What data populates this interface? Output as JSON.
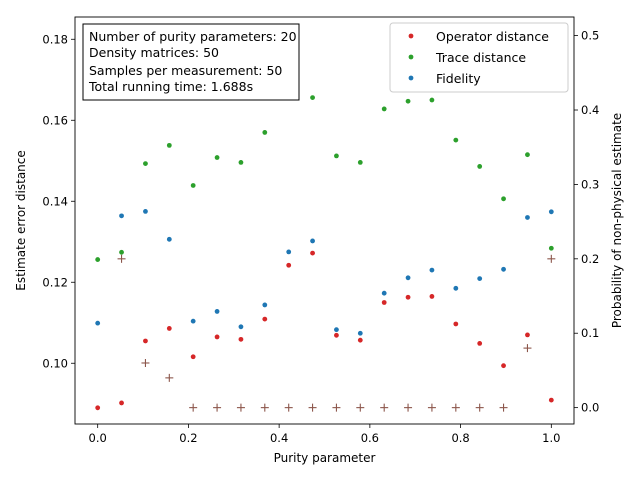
{
  "chart_data": {
    "type": "scatter",
    "xlabel": "Purity parameter",
    "ylabel": "Estimate error distance",
    "y2label": "Probability of non-physical estimate",
    "xlim": [
      -0.05,
      1.05
    ],
    "ylim": [
      0.085,
      0.1855
    ],
    "y2lim": [
      -0.022,
      0.525
    ],
    "x_ticks": [
      0.0,
      0.2,
      0.4,
      0.6,
      0.8,
      1.0
    ],
    "x_tick_labels": [
      "0.0",
      "0.2",
      "0.4",
      "0.6",
      "0.8",
      "1.0"
    ],
    "y_ticks": [
      0.1,
      0.12,
      0.14,
      0.16,
      0.18
    ],
    "y_tick_labels": [
      "0.10",
      "0.12",
      "0.14",
      "0.16",
      "0.18"
    ],
    "y2_ticks": [
      0.0,
      0.1,
      0.2,
      0.3,
      0.4,
      0.5
    ],
    "y2_tick_labels": [
      "0.0",
      "0.1",
      "0.2",
      "0.3",
      "0.4",
      "0.5"
    ],
    "x": [
      0.0,
      0.0526,
      0.1053,
      0.1579,
      0.2105,
      0.2632,
      0.3158,
      0.3684,
      0.4211,
      0.4737,
      0.5263,
      0.5789,
      0.6316,
      0.6842,
      0.7368,
      0.7895,
      0.8421,
      0.8947,
      0.9474,
      1.0
    ],
    "series": [
      {
        "name": "Operator distance",
        "axis": "left",
        "color": "#d62728",
        "marker": "dot",
        "values": [
          0.089,
          0.0902,
          0.1055,
          0.1086,
          0.1016,
          0.1065,
          0.1059,
          0.1109,
          0.1242,
          0.1272,
          0.1069,
          0.1057,
          0.115,
          0.1163,
          0.1165,
          0.1097,
          0.1049,
          0.0994,
          0.107,
          0.0909
        ]
      },
      {
        "name": "Trace distance",
        "axis": "left",
        "color": "#2ca02c",
        "marker": "dot",
        "values": [
          0.1256,
          0.1274,
          0.1493,
          0.1538,
          0.1439,
          0.1508,
          0.1496,
          0.157,
          0.1656,
          0.1656,
          0.1512,
          0.1496,
          0.1628,
          0.1647,
          0.165,
          0.1551,
          0.1486,
          0.1406,
          0.1515,
          0.1284
        ]
      },
      {
        "name": "Fidelity",
        "axis": "left",
        "color": "#1f77b4",
        "marker": "dot",
        "values": [
          0.1099,
          0.1364,
          0.1375,
          0.1306,
          0.1104,
          0.1128,
          0.109,
          0.1144,
          0.1275,
          0.1302,
          0.1083,
          0.1074,
          0.1173,
          0.1211,
          0.123,
          0.1185,
          0.1209,
          0.1232,
          0.136,
          0.1374
        ]
      },
      {
        "axis": "right",
        "color": "#8c564b",
        "marker": "plus",
        "values": [
          null,
          0.2,
          0.06,
          0.04,
          0.0,
          0.0,
          0.0,
          0.0,
          0.0,
          0.0,
          0.0,
          0.0,
          0.0,
          0.0,
          0.0,
          0.0,
          0.0,
          0.0,
          0.08,
          0.2
        ]
      }
    ],
    "legend_location": "top-right",
    "annotation_lines": [
      "Number of purity parameters: 20",
      "Density matrices: 50",
      "Samples per measurement: 50",
      "Total running time:  1.688s"
    ],
    "grid": false
  }
}
